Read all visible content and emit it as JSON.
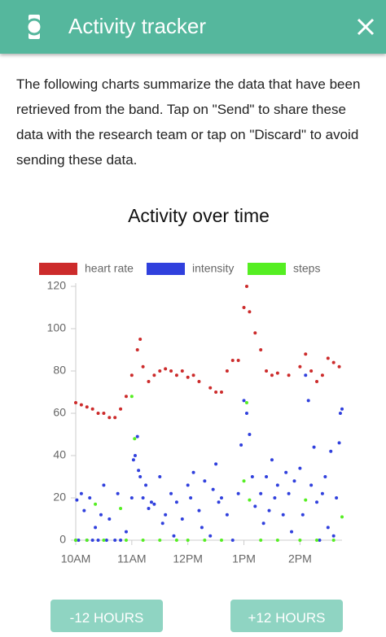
{
  "header": {
    "title": "Activity tracker"
  },
  "description": "The following charts summarize the data that have been retrieved from the band. Tap on \"Send\" to share these data with the research team or tap on \"Discard\" to avoid sending these data.",
  "buttons": [
    "-12 HOURS",
    "+12 HOURS"
  ],
  "chart_data": {
    "type": "scatter",
    "title": "Activity over time",
    "xlim": [
      10,
      14.75
    ],
    "ylim": [
      0,
      120
    ],
    "xticks": [
      {
        "value": 10,
        "label": "10AM"
      },
      {
        "value": 11,
        "label": "11AM"
      },
      {
        "value": 12,
        "label": "12PM"
      },
      {
        "value": 13,
        "label": "1PM"
      },
      {
        "value": 14,
        "label": "2PM"
      }
    ],
    "yticks": [
      0,
      20,
      40,
      60,
      80,
      100,
      120
    ],
    "series": [
      {
        "name": "heart rate",
        "color": "#cc2b2b",
        "x": [
          10.0,
          10.1,
          10.2,
          10.3,
          10.4,
          10.5,
          10.6,
          10.7,
          10.8,
          10.9,
          11.0,
          11.1,
          11.15,
          11.2,
          11.3,
          11.4,
          11.5,
          11.6,
          11.7,
          11.8,
          11.9,
          12.0,
          12.1,
          12.2,
          12.4,
          12.5,
          12.6,
          12.7,
          12.8,
          12.9,
          13.0,
          13.05,
          13.1,
          13.2,
          13.3,
          13.4,
          13.5,
          13.6,
          13.8,
          14.0,
          14.1,
          14.2,
          14.3,
          14.4,
          14.5,
          14.6,
          14.7
        ],
        "values": [
          65,
          64,
          63,
          62,
          60,
          60,
          58,
          58,
          62,
          68,
          78,
          90,
          95,
          82,
          75,
          78,
          80,
          81,
          80,
          78,
          80,
          77,
          78,
          75,
          72,
          70,
          70,
          80,
          85,
          85,
          110,
          120,
          108,
          98,
          90,
          80,
          78,
          79,
          78,
          82,
          88,
          80,
          75,
          78,
          86,
          84,
          82
        ]
      },
      {
        "name": "intensity",
        "color": "#3040dd",
        "x": [
          10.0,
          10.02,
          10.05,
          10.1,
          10.15,
          10.2,
          10.25,
          10.3,
          10.35,
          10.4,
          10.45,
          10.5,
          10.55,
          10.6,
          10.7,
          10.75,
          10.8,
          10.9,
          11.0,
          11.03,
          11.06,
          11.1,
          11.12,
          11.15,
          11.2,
          11.25,
          11.3,
          11.35,
          11.4,
          11.5,
          11.55,
          11.6,
          11.7,
          11.75,
          11.8,
          11.9,
          12.0,
          12.05,
          12.1,
          12.2,
          12.25,
          12.3,
          12.4,
          12.45,
          12.5,
          12.55,
          12.6,
          12.7,
          12.8,
          12.9,
          12.95,
          13.0,
          13.05,
          13.1,
          13.15,
          13.2,
          13.3,
          13.35,
          13.4,
          13.45,
          13.5,
          13.55,
          13.6,
          13.7,
          13.75,
          13.8,
          13.85,
          13.9,
          14.0,
          14.05,
          14.1,
          14.15,
          14.2,
          14.25,
          14.3,
          14.35,
          14.4,
          14.45,
          14.5,
          14.55,
          14.6,
          14.65,
          14.7,
          14.72,
          14.75
        ],
        "values": [
          0,
          19,
          0,
          22,
          14,
          0,
          20,
          0,
          6,
          0,
          12,
          26,
          0,
          10,
          0,
          22,
          0,
          4,
          20,
          38,
          40,
          49,
          33,
          30,
          20,
          26,
          15,
          18,
          17,
          30,
          8,
          12,
          22,
          2,
          18,
          10,
          26,
          20,
          32,
          14,
          6,
          28,
          2,
          24,
          36,
          18,
          20,
          12,
          0,
          22,
          45,
          66,
          60,
          50,
          30,
          16,
          22,
          8,
          30,
          14,
          38,
          20,
          26,
          12,
          32,
          22,
          4,
          28,
          34,
          12,
          78,
          66,
          26,
          44,
          18,
          0,
          22,
          30,
          6,
          42,
          2,
          20,
          46,
          60,
          62
        ]
      },
      {
        "name": "steps",
        "color": "#55ee22",
        "x": [
          10.0,
          10.2,
          10.35,
          10.5,
          10.8,
          10.9,
          11.0,
          11.05,
          11.2,
          11.5,
          11.8,
          12.0,
          12.3,
          12.6,
          13.0,
          13.05,
          13.1,
          13.3,
          13.6,
          14.0,
          14.1,
          14.3,
          14.6,
          14.75
        ],
        "values": [
          0,
          0,
          17,
          0,
          15,
          0,
          68,
          48,
          0,
          0,
          0,
          0,
          0,
          0,
          28,
          65,
          19,
          0,
          0,
          0,
          19,
          0,
          0,
          11
        ]
      }
    ]
  }
}
